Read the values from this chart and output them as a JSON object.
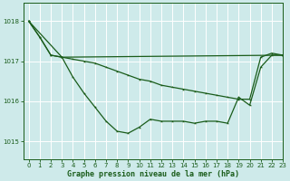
{
  "bg_color": "#ceeaea",
  "grid_color": "#ffffff",
  "line_color": "#1a5c1a",
  "title": "Graphe pression niveau de la mer (hPa)",
  "xlim": [
    -0.5,
    23
  ],
  "ylim": [
    1014.55,
    1018.45
  ],
  "yticks": [
    1015,
    1016,
    1017,
    1018
  ],
  "xticks": [
    0,
    1,
    2,
    3,
    4,
    5,
    6,
    7,
    8,
    9,
    10,
    11,
    12,
    13,
    14,
    15,
    16,
    17,
    18,
    19,
    20,
    21,
    22,
    23
  ],
  "series1_x": [
    0,
    1,
    2,
    3,
    4,
    5,
    6,
    7,
    8,
    9,
    10,
    11,
    12,
    13,
    14,
    15,
    16,
    17,
    18,
    19,
    20,
    21,
    22,
    23
  ],
  "series1_y": [
    1018.0,
    1017.6,
    1017.15,
    1017.1,
    1017.05,
    1017.0,
    1016.95,
    1016.85,
    1016.75,
    1016.65,
    1016.55,
    1016.5,
    1016.4,
    1016.35,
    1016.3,
    1016.25,
    1016.2,
    1016.15,
    1016.1,
    1016.05,
    1016.05,
    1017.1,
    1017.2,
    1017.15
  ],
  "series2_x": [
    0,
    1,
    2,
    3,
    4,
    5,
    6,
    7,
    8,
    9,
    10,
    11,
    12,
    13,
    14,
    15,
    16,
    17,
    18,
    19,
    20,
    21,
    22,
    23
  ],
  "series2_y": [
    1018.0,
    1017.6,
    1017.15,
    1017.1,
    1016.6,
    1016.2,
    1015.85,
    1015.5,
    1015.25,
    1015.2,
    1015.35,
    1015.55,
    1015.5,
    1015.5,
    1015.5,
    1015.45,
    1015.5,
    1015.5,
    1015.45,
    1016.1,
    1015.9,
    1016.85,
    1017.15,
    1017.15
  ],
  "series3_x": [
    0,
    3,
    23
  ],
  "series3_y": [
    1018.0,
    1017.1,
    1017.15
  ]
}
